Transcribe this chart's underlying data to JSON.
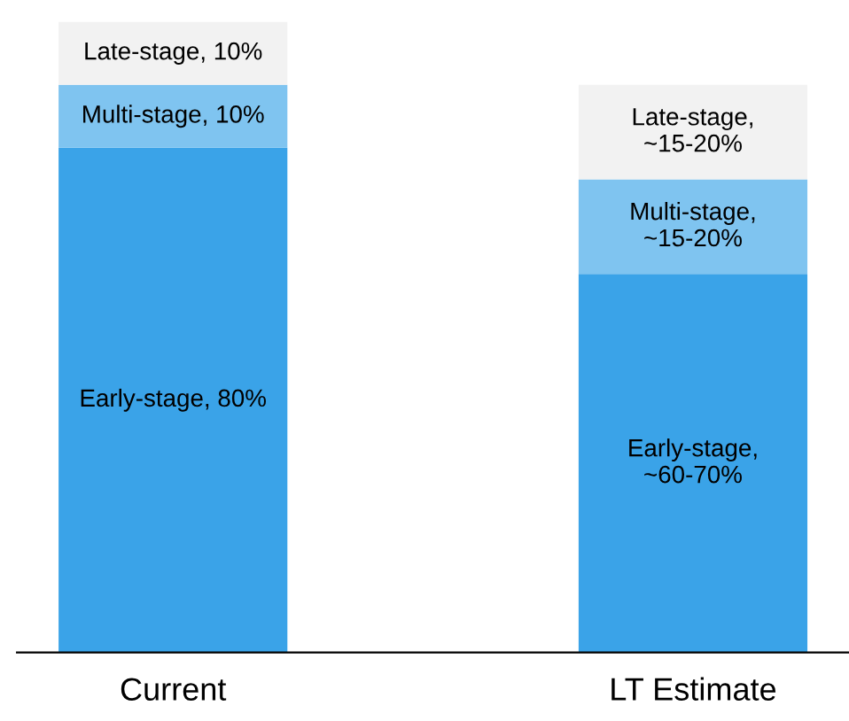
{
  "chart_data": {
    "type": "bar",
    "stacked": true,
    "categories": [
      "Current",
      "LT Estimate"
    ],
    "series": [
      {
        "color": "#3aa3e8",
        "values": [
          80,
          60
        ],
        "value_labels": [
          "Early-stage, 80%",
          "Early-stage,\n~60-70%"
        ]
      },
      {
        "color": "#7fc4f0",
        "values": [
          10,
          15
        ],
        "value_labels": [
          "Multi-stage, 10%",
          "Multi-stage,\n~15-20%"
        ]
      },
      {
        "color": "#f2f2f2",
        "values": [
          10,
          15
        ],
        "value_labels": [
          "Late-stage, 10%",
          "Late-stage,\n~15-20%"
        ]
      }
    ]
  }
}
